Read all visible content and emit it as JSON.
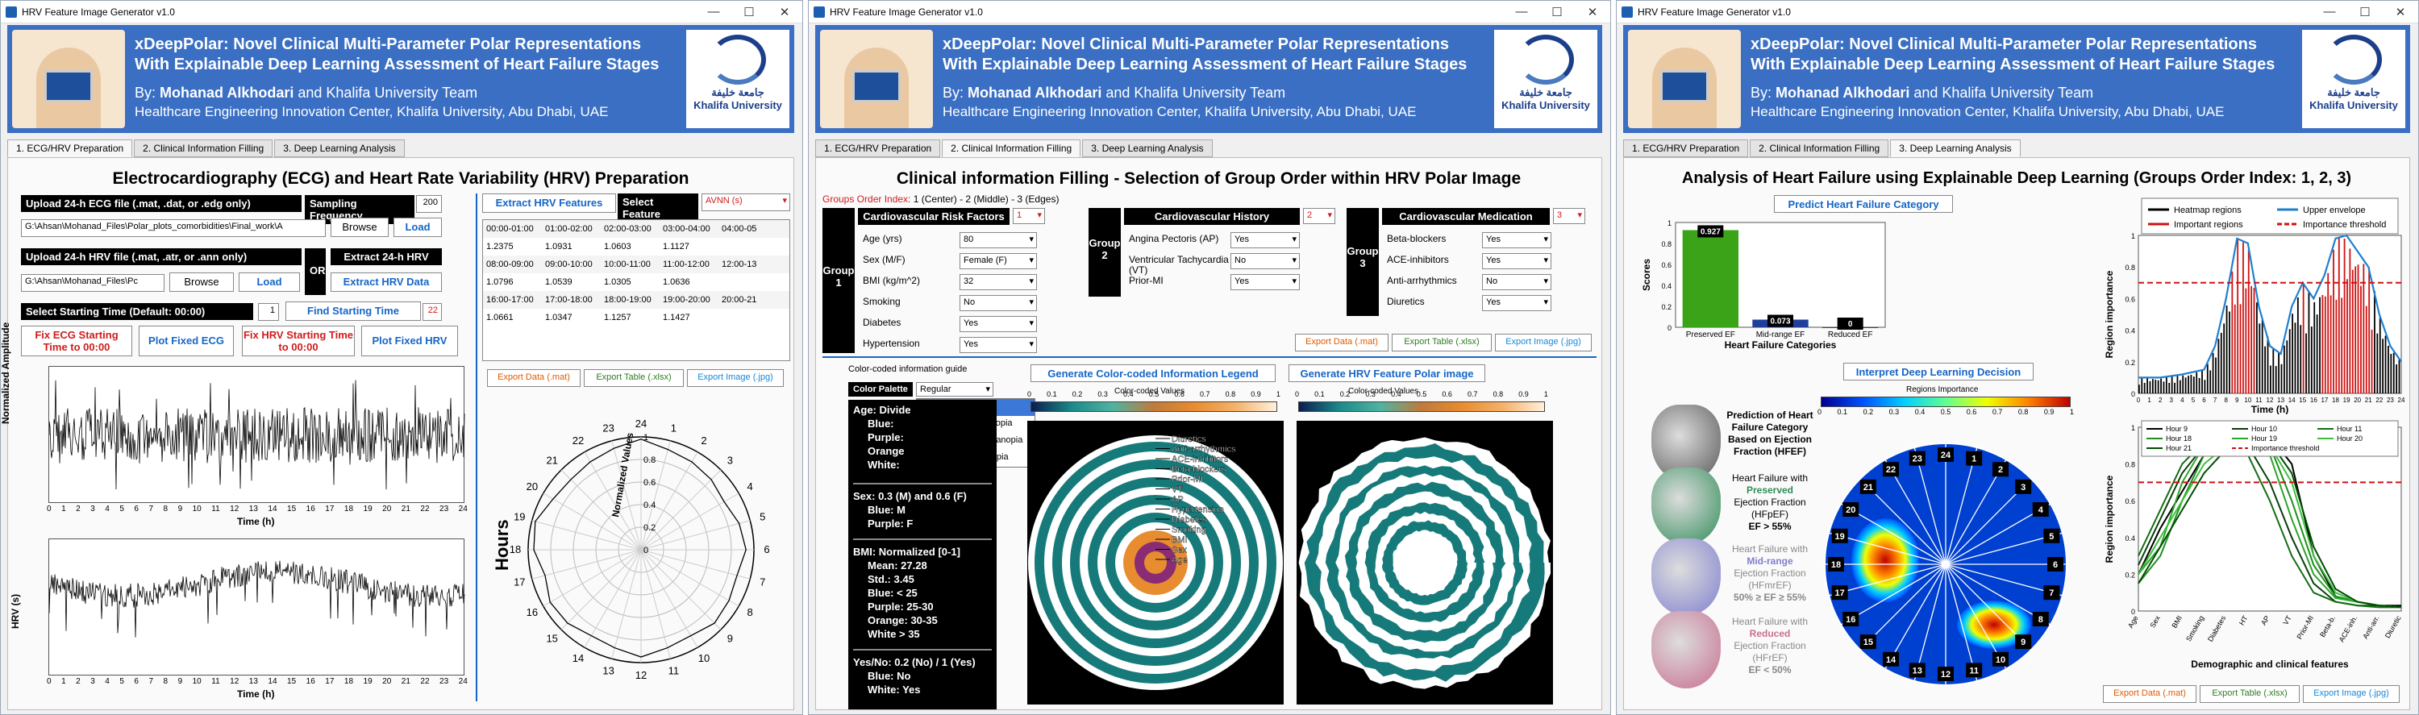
{
  "app_title": "HRV Feature Image Generator v1.0",
  "window_controls": {
    "minimize": "—",
    "maximize": "☐",
    "close": "✕"
  },
  "banner": {
    "title_line1": "xDeepPolar: Novel Clinical Multi-Parameter Polar Representations",
    "title_line2": "With Explainable Deep Learning Assessment of Heart Failure Stages",
    "by_label": "By: ",
    "author": "Mohanad Alkhodari",
    "team": " and Khalifa University Team",
    "affiliation": "Healthcare Engineering Innovation Center, Khalifa University, Abu Dhabi, UAE",
    "logo_arabic": "جامعة خليفة",
    "logo_english": "Khalifa University"
  },
  "tabs": [
    "1. ECG/HRV Preparation",
    "2. Clinical Information Filling",
    "3. Deep Learning Analysis"
  ],
  "win1": {
    "heading": "Electrocardiography (ECG) and Heart Rate Variability (HRV) Preparation",
    "upload_ecg_label": "Upload 24-h ECG file (.mat, .dat, or .edg only)",
    "sampling_label": "Sampling Frequency",
    "sampling_value": "200",
    "ecg_path": "G:\\Ahsan\\Mohanad_Files\\Polar_plots_comorbidities\\Final_work\\A",
    "browse": "Browse",
    "load": "Load",
    "upload_hrv_label": "Upload 24-h HRV file (.mat, .atr, or .ann only)",
    "or": "OR",
    "extract_24h_label": "Extract 24-h HRV",
    "hrv_path": "G:\\Ahsan\\Mohanad_Files\\Pc",
    "extract_hrv_data": "Extract HRV Data",
    "start_time_label": "Select Starting Time (Default: 00:00)",
    "start_time_value": "1",
    "find_start": "Find Starting Time",
    "find_start_value": "22",
    "fix_ecg": "Fix ECG Starting Time to 00:00",
    "plot_fixed_ecg": "Plot Fixed ECG",
    "fix_hrv": "Fix HRV Starting Time to 00:00",
    "plot_fixed_hrv": "Plot Fixed HRV",
    "ecg_ylabel": "Normalized Amplitude",
    "hrv_ylabel": "HRV (s)",
    "xlabel": "Time (h)",
    "ecg_yticks": [
      "1",
      "0.5",
      "0",
      "-0.5",
      "-1"
    ],
    "hrv_yticks": [
      "1.5",
      "1",
      "0.5"
    ],
    "xticks": [
      "0",
      "1",
      "2",
      "3",
      "4",
      "5",
      "6",
      "7",
      "8",
      "9",
      "10",
      "11",
      "12",
      "13",
      "14",
      "15",
      "16",
      "17",
      "18",
      "19",
      "20",
      "21",
      "22",
      "23",
      "24"
    ],
    "extract_features": "Extract HRV Features",
    "select_feature": "Select Feature",
    "feature_value": "AVNN (s)",
    "table": [
      [
        "00:00-01:00",
        "01:00-02:00",
        "02:00-03:00",
        "03:00-04:00",
        "04:00-05"
      ],
      [
        "1.2375",
        "1.0931",
        "1.0603",
        "1.1127",
        ""
      ],
      [
        "08:00-09:00",
        "09:00-10:00",
        "10:00-11:00",
        "11:00-12:00",
        "12:00-13"
      ],
      [
        "1.0796",
        "1.0539",
        "1.0305",
        "1.0636",
        ""
      ],
      [
        "16:00-17:00",
        "17:00-18:00",
        "18:00-19:00",
        "19:00-20:00",
        "20:00-21"
      ],
      [
        "1.0661",
        "1.0347",
        "1.1257",
        "1.1427",
        ""
      ]
    ],
    "export_data": "Export Data (.mat)",
    "export_table": "Export Table (.xlsx)",
    "export_image": "Export Image (.jpg)",
    "polar_title": "Hours",
    "polar_rlabel": "Normalized Values",
    "polar_hours": [
      "24",
      "1",
      "2",
      "3",
      "4",
      "5",
      "6",
      "7",
      "8",
      "9",
      "10",
      "11",
      "12",
      "13",
      "14",
      "15",
      "16",
      "17",
      "18",
      "19",
      "20",
      "21",
      "22",
      "23"
    ],
    "polar_rticks": [
      "1",
      "0.8",
      "0.6",
      "0.4",
      "0.2",
      "0"
    ]
  },
  "win2": {
    "heading": "Clinical information Filling  -  Selection of Group Order within HRV Polar Image",
    "groups_order_label": "Groups Order Index:",
    "groups_order_value": " 1 (Center) - 2 (Middle) - 3 (Edges)",
    "group1": {
      "name": "Group 1",
      "title": "Cardiovascular Risk Factors",
      "order": "1",
      "fields": [
        [
          "Age (yrs)",
          "80"
        ],
        [
          "Sex (M/F)",
          "Female (F)"
        ],
        [
          "BMI (kg/m^2)",
          "32"
        ],
        [
          "Smoking",
          "No"
        ],
        [
          "Diabetes",
          "Yes"
        ],
        [
          "Hypertension",
          "Yes"
        ]
      ]
    },
    "group2": {
      "name": "Group 2",
      "title": "Cardiovascular History",
      "order": "2",
      "fields": [
        [
          "Angina Pectoris (AP)",
          "Yes"
        ],
        [
          "Ventricular Tachycardia (VT)",
          "No"
        ],
        [
          "Prior-MI",
          "Yes"
        ]
      ]
    },
    "group3": {
      "name": "Group 3",
      "title": "Cardiovascular Medication",
      "order": "3",
      "fields": [
        [
          "Beta-blockers",
          "Yes"
        ],
        [
          "ACE-inhibitors",
          "Yes"
        ],
        [
          "Anti-arrhythmics",
          "No"
        ],
        [
          "Diuretics",
          "Yes"
        ]
      ]
    },
    "export_data": "Export Data (.mat)",
    "export_table": "Export Table (.xlsx)",
    "export_image": "Export Image (.jpg)",
    "guide_label": "Color-coded information guide",
    "palette_label": "Color Palette",
    "palette_value": "Regular",
    "palette_options": [
      "Regular",
      "Color-blind: Protanopia",
      "Color-blind: Deuteranopia",
      "Color-blind: Tritanopia"
    ],
    "guide_age": "Age: Divide",
    "guide_age_lines": [
      "Blue:",
      "Purple:",
      "Orange",
      "White:"
    ],
    "guide_sex": [
      "Sex: 0.3 (M) and 0.6 (F)",
      "Blue: M",
      "Purple: F"
    ],
    "guide_bmi": [
      "BMI: Normalized [0-1]",
      "Mean: 27.28",
      "Std.: 3.45",
      "Blue: < 25",
      "Purple: 25-30",
      "Orange: 30-35",
      "White > 35"
    ],
    "guide_yesno": [
      "Yes/No: 0.2 (No) / 1 (Yes)",
      "Blue: No",
      "White: Yes"
    ],
    "gen_legend": "Generate Color-coded Information Legend",
    "gen_polar": "Generate HRV Feature Polar image",
    "cbar_label": "Color-coded Values",
    "cbar_ticks": [
      "0",
      "0.1",
      "0.2",
      "0.3",
      "0.4",
      "0.5",
      "0.6",
      "0.7",
      "0.8",
      "0.9",
      "1"
    ],
    "legend_labels": [
      "Diuretics",
      "Anti-arrhythmics",
      "ACE-inhibitors",
      "Beta-blockers",
      "Prior-MI",
      "VT",
      "AP",
      "Hypertension",
      "Diabetes",
      "Smoking",
      "BMI",
      "Sex",
      "Age"
    ]
  },
  "win3": {
    "heading": "Analysis of Heart Failure using Explainable Deep Learning (Groups Order Index: 1, 2, 3)",
    "predict_btn": "Predict Heart Failure Category",
    "bar_ylabel": "Scores",
    "bar_xlabel": "Heart Failure Categories",
    "interpret_btn": "Interpret Deep Learning Decision",
    "regions_label": "Regions Importance",
    "cards": [
      {
        "title": "Prediction of Heart Failure Category Based on Ejection Fraction (HFEF)"
      },
      {
        "pre": "Heart Failure with",
        "key": "Preserved",
        "post": "Ejection Fraction (HFpEF)",
        "ef": "EF > 55%",
        "color": "#2e8b57"
      },
      {
        "pre": "Heart Failure with",
        "key": "Mid-range",
        "post": "Ejection Fraction (HFmrEF)",
        "ef": "50% ≥ EF ≥ 55%",
        "color": "#7f7fcf"
      },
      {
        "pre": "Heart Failure with",
        "key": "Reduced",
        "post": "Ejection Fraction (HFrEF)",
        "ef": "EF < 50%",
        "color": "#c86f90"
      }
    ],
    "legend_top": [
      "Heatmap regions",
      "Upper envelope",
      "Important regions",
      "Importance threshold"
    ],
    "top_ylabel": "Region importance",
    "top_xlabel": "Time (h)",
    "legend_bottom": [
      "Hour 9",
      "Hour 10",
      "Hour 11",
      "Hour 18",
      "Hour 19",
      "Hour 20",
      "Hour 21",
      "Importance threshold"
    ],
    "bottom_ylabel": "Region importance",
    "bottom_xlabel": "Demographic and clinical features",
    "bottom_xticks": [
      "Age",
      "Sex",
      "BMI",
      "Smoking",
      "Diabetes",
      "HT",
      "AP",
      "VT",
      "Prior-MI",
      "Beta-b.",
      "ACE-inh.",
      "Anti-arr.",
      "Diuretic"
    ],
    "export_data": "Export Data (.mat)",
    "export_table": "Export Table (.xlsx)",
    "export_image": "Export Image (.jpg)",
    "colorbar_ticks": [
      "0",
      "0.1",
      "0.2",
      "0.3",
      "0.4",
      "0.5",
      "0.6",
      "0.7",
      "0.8",
      "0.9",
      "1"
    ],
    "yticks_unit": [
      "0",
      "0.2",
      "0.4",
      "0.6",
      "0.8",
      "1"
    ]
  },
  "chart_data": [
    {
      "type": "bar",
      "categories": [
        "Preserved EF",
        "Mid-range EF",
        "Reduced EF"
      ],
      "values": [
        0.927,
        0.073,
        0
      ],
      "labels": [
        "0.927",
        "0.073",
        "0"
      ],
      "ylim": [
        0,
        1
      ],
      "ylabel": "Scores",
      "xlabel": "Heart Failure Categories",
      "colors": [
        "#3aa317",
        "#1f3f9c",
        "#444"
      ]
    },
    {
      "type": "line",
      "title": "",
      "xlabel": "Time (h)",
      "ylabel": "Region importance",
      "xlim": [
        0,
        24
      ],
      "ylim": [
        0,
        1
      ],
      "threshold": 0.7,
      "series": [
        {
          "name": "Upper envelope",
          "x": [
            0,
            2,
            4,
            6,
            7,
            8,
            9,
            10,
            11,
            12,
            13,
            14,
            15,
            16,
            17,
            18,
            19,
            20,
            21,
            22,
            23,
            24
          ],
          "y": [
            0.1,
            0.1,
            0.12,
            0.15,
            0.3,
            0.6,
            0.98,
            0.95,
            0.55,
            0.3,
            0.25,
            0.55,
            0.7,
            0.6,
            0.75,
            0.98,
            1.0,
            0.9,
            0.8,
            0.5,
            0.3,
            0.2
          ]
        }
      ]
    },
    {
      "type": "line",
      "xlabel": "Demographic and clinical features",
      "ylabel": "Region importance",
      "ylim": [
        0,
        1
      ],
      "threshold": 0.7,
      "categories": [
        "Age",
        "Sex",
        "BMI",
        "Smoking",
        "Diabetes",
        "HT",
        "AP",
        "VT",
        "Prior-MI",
        "Beta-b.",
        "ACE-inh.",
        "Anti-arr.",
        "Diuretic"
      ],
      "series": [
        {
          "name": "Hour 9",
          "values": [
            0.2,
            0.45,
            0.65,
            0.85,
            0.95,
            1.0,
            0.95,
            0.8,
            0.3,
            0.08,
            0.05,
            0.03,
            0.03
          ]
        },
        {
          "name": "Hour 10",
          "values": [
            0.25,
            0.5,
            0.75,
            0.9,
            0.95,
            0.9,
            0.7,
            0.4,
            0.15,
            0.05,
            0.03,
            0.03,
            0.02
          ]
        },
        {
          "name": "Hour 11",
          "values": [
            0.3,
            0.55,
            0.8,
            0.92,
            0.95,
            0.85,
            0.6,
            0.3,
            0.1,
            0.05,
            0.03,
            0.02,
            0.02
          ]
        },
        {
          "name": "Hour 18",
          "values": [
            0.15,
            0.3,
            0.6,
            0.85,
            0.97,
            0.98,
            0.9,
            0.6,
            0.25,
            0.08,
            0.05,
            0.03,
            0.02
          ]
        },
        {
          "name": "Hour 19",
          "values": [
            0.2,
            0.35,
            0.7,
            0.9,
            0.98,
            0.97,
            0.85,
            0.5,
            0.2,
            0.07,
            0.05,
            0.03,
            0.02
          ]
        },
        {
          "name": "Hour 20",
          "values": [
            0.2,
            0.4,
            0.6,
            0.8,
            0.9,
            0.95,
            0.9,
            0.7,
            0.3,
            0.1,
            0.05,
            0.03,
            0.02
          ]
        },
        {
          "name": "Hour 21",
          "values": [
            0.15,
            0.35,
            0.55,
            0.75,
            0.88,
            0.95,
            0.92,
            0.75,
            0.35,
            0.12,
            0.05,
            0.03,
            0.02
          ]
        }
      ]
    }
  ]
}
